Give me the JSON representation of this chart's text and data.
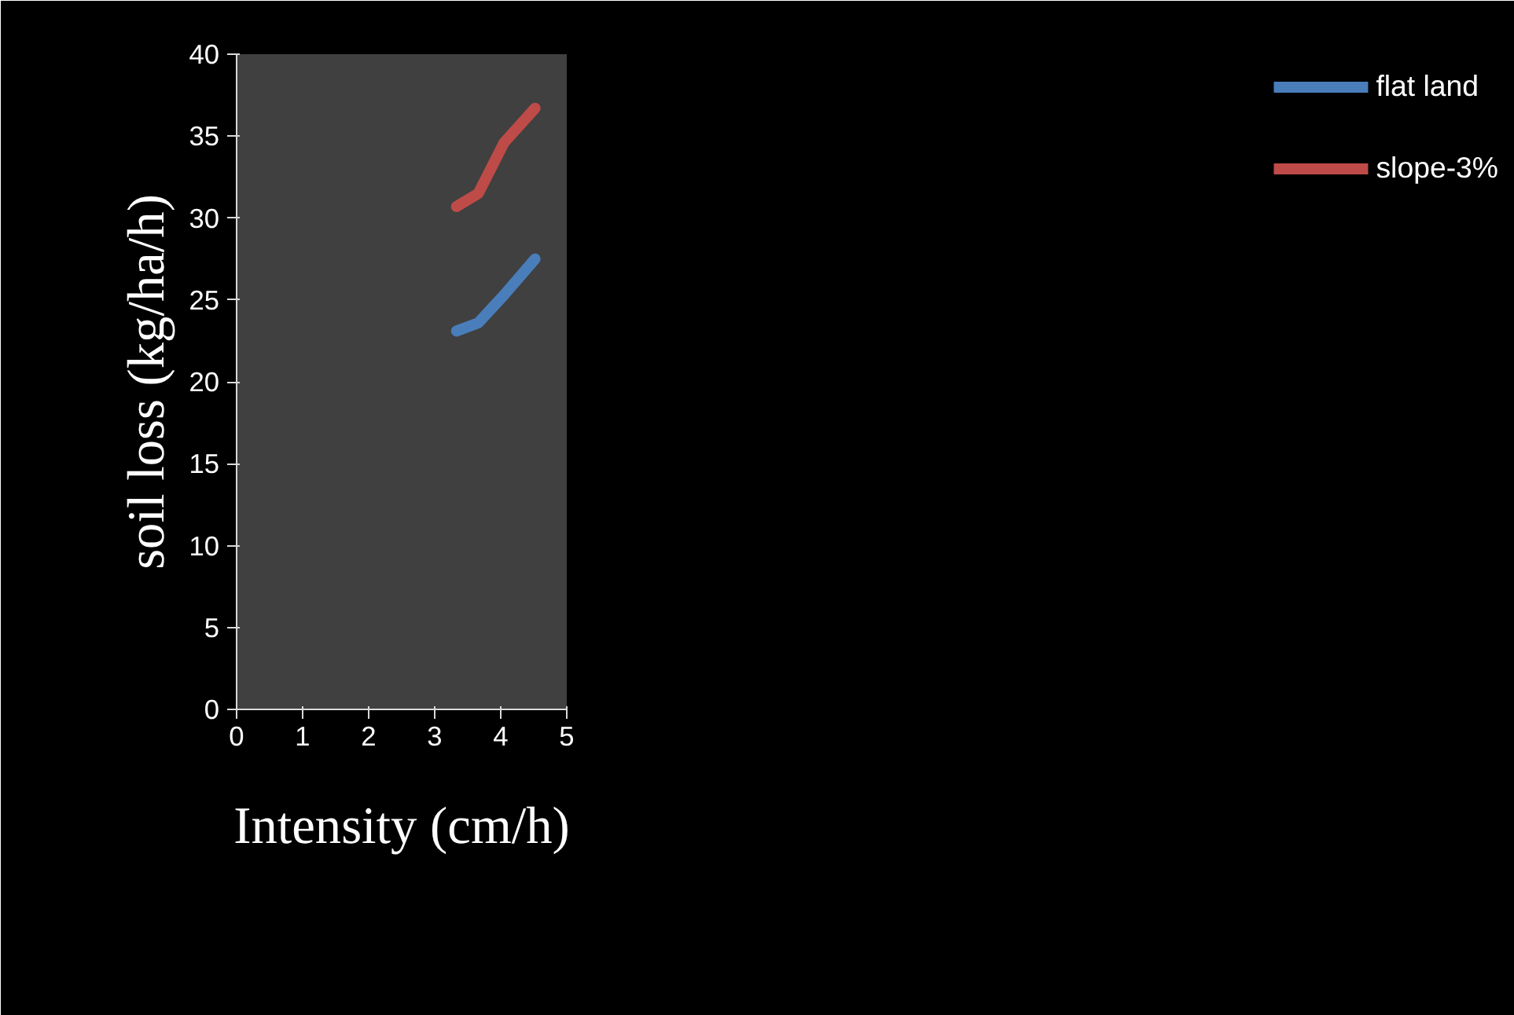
{
  "chart_data": {
    "type": "line",
    "xlabel": "Intensity (cm/h)",
    "ylabel": "soil loss (kg/ha/h)",
    "x": [
      3.33,
      3.66,
      4.05,
      4.52
    ],
    "xlim": [
      0,
      5
    ],
    "xticks": [
      0,
      1,
      2,
      3,
      4,
      5
    ],
    "ylim": [
      0,
      40
    ],
    "yticks": [
      0,
      5,
      10,
      15,
      20,
      25,
      30,
      35,
      40
    ],
    "grid": false,
    "legend": "right",
    "marker": "none",
    "line_style": "solid",
    "series": [
      {
        "name": "flat land",
        "color": "#4a7ebb",
        "values": [
          23.1,
          23.6,
          25.3,
          27.5
        ]
      },
      {
        "name": "slope-3%",
        "color": "#be4b48",
        "values": [
          30.7,
          31.5,
          34.6,
          36.7
        ]
      }
    ]
  }
}
